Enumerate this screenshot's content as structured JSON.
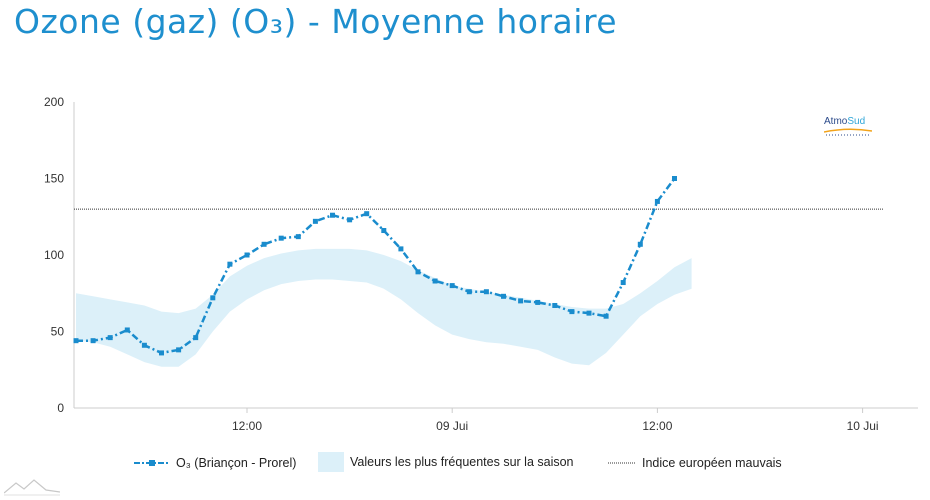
{
  "title": "Ozone (gaz) (O₃) - Moyenne horaire",
  "logo": {
    "part1": "Atmo",
    "part2": "Sud"
  },
  "colors": {
    "accent": "#1e8fce",
    "series": "#1a8ccd",
    "band": "#dcf0f9",
    "threshold": "#333333"
  },
  "chart_data": {
    "type": "line",
    "title": "Ozone (gaz) (O₃) - Moyenne horaire",
    "xlabel": "",
    "ylabel": "",
    "ylim": [
      0,
      200
    ],
    "yticks": [
      0,
      50,
      100,
      150,
      200
    ],
    "xlim": [
      0,
      46
    ],
    "xticks": [
      {
        "x": 10,
        "label": "12:00"
      },
      {
        "x": 22,
        "label": "09 Jui"
      },
      {
        "x": 34,
        "label": "12:00"
      },
      {
        "x": 46,
        "label": "10 Jui"
      }
    ],
    "grid": false,
    "legend_position": "bottom",
    "series": [
      {
        "name": "O₃ (Briançon - Prorel)",
        "x": [
          0,
          1,
          2,
          3,
          4,
          5,
          6,
          7,
          8,
          9,
          10,
          11,
          12,
          13,
          14,
          15,
          16,
          17,
          18,
          19,
          20,
          21,
          22,
          23,
          24,
          25,
          26,
          27,
          28,
          29,
          30,
          31,
          32,
          33,
          34,
          35,
          36
        ],
        "y": [
          44,
          44,
          46,
          51,
          41,
          36,
          38,
          46,
          72,
          94,
          100,
          107,
          111,
          112,
          122,
          126,
          123,
          127,
          116,
          104,
          89,
          83,
          80,
          76,
          76,
          73,
          70,
          69,
          67,
          63,
          62,
          60,
          82,
          107,
          135,
          150,
          null
        ]
      }
    ],
    "band": {
      "name": "Valeurs les plus fréquentes sur la saison",
      "x": [
        0,
        1,
        2,
        3,
        4,
        5,
        6,
        7,
        8,
        9,
        10,
        11,
        12,
        13,
        14,
        15,
        16,
        17,
        18,
        19,
        20,
        21,
        22,
        23,
        24,
        25,
        26,
        27,
        28,
        29,
        30,
        31,
        32,
        33,
        34,
        35,
        36
      ],
      "low": [
        44,
        43,
        40,
        35,
        30,
        27,
        27,
        35,
        50,
        63,
        71,
        77,
        81,
        83,
        84,
        84,
        83,
        82,
        78,
        71,
        62,
        54,
        48,
        45,
        43,
        42,
        40,
        38,
        33,
        29,
        28,
        36,
        48,
        60,
        68,
        74,
        78
      ],
      "high": [
        75,
        73,
        71,
        69,
        67,
        63,
        62,
        65,
        74,
        86,
        93,
        98,
        101,
        103,
        104,
        104,
        104,
        103,
        100,
        96,
        90,
        85,
        80,
        78,
        76,
        74,
        72,
        70,
        68,
        66,
        65,
        65,
        68,
        75,
        83,
        92,
        98
      ]
    },
    "threshold": {
      "name": "Indice européen mauvais",
      "y": 130
    }
  }
}
